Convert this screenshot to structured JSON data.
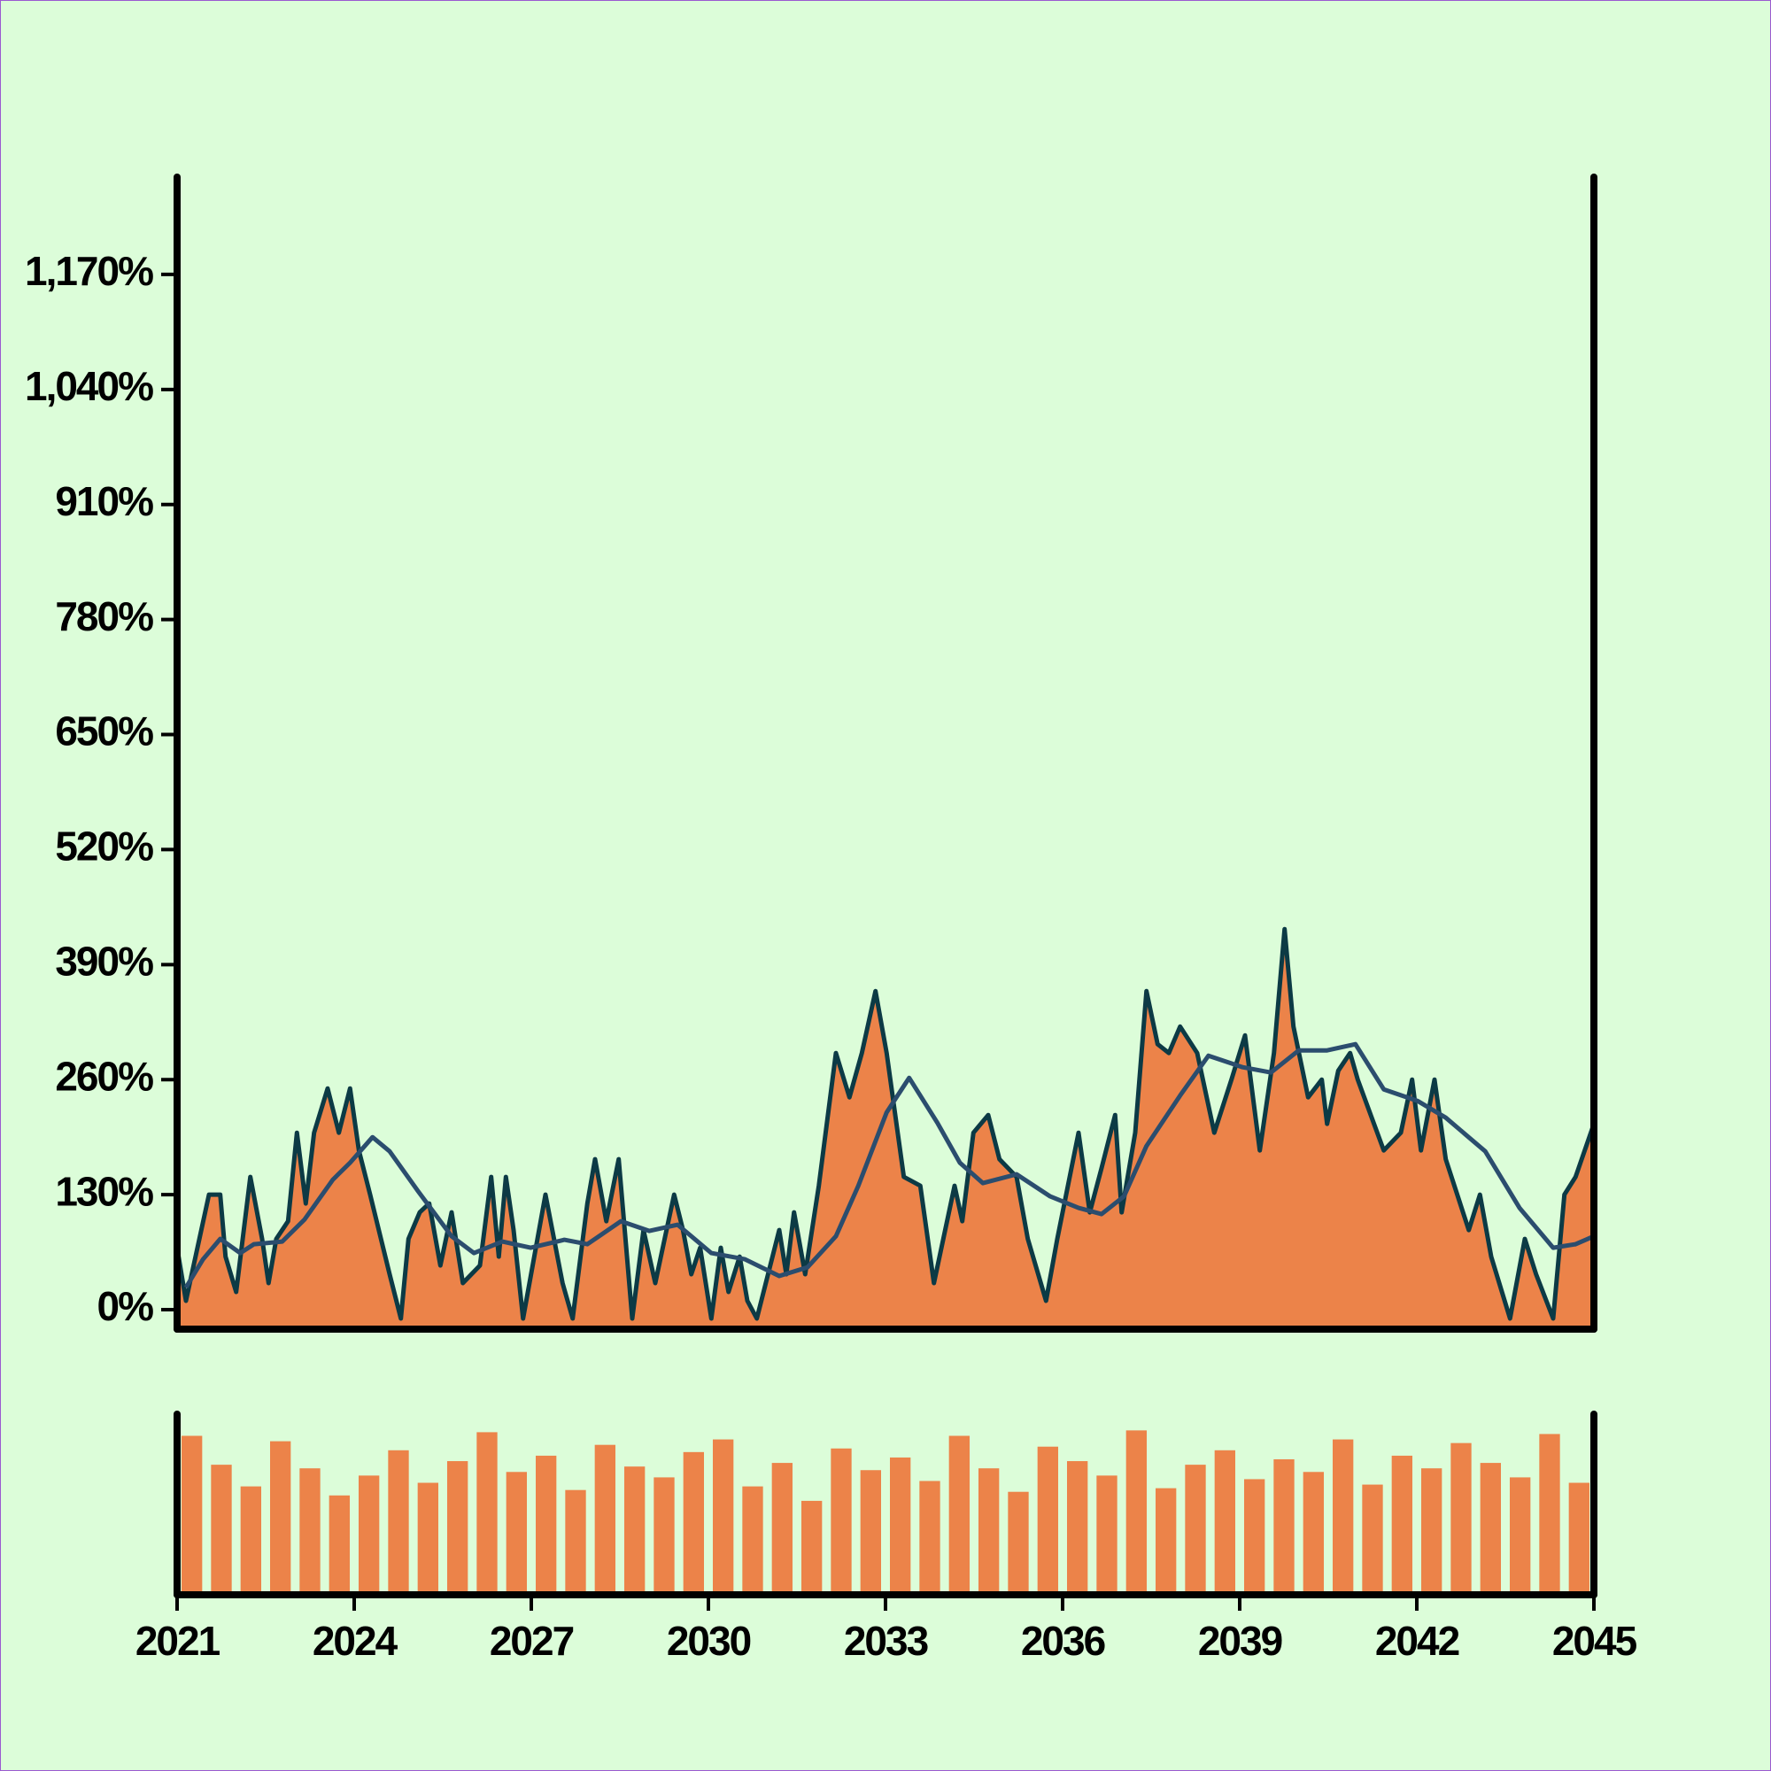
{
  "chart_data": [
    {
      "type": "area",
      "xlim": [
        2021,
        2045
      ],
      "ylim": [
        -22,
        1280
      ],
      "yticks": [
        {
          "value": 0,
          "label": "0%"
        },
        {
          "value": 130,
          "label": "130%"
        },
        {
          "value": 260,
          "label": "260%"
        },
        {
          "value": 390,
          "label": "390%"
        },
        {
          "value": 520,
          "label": "520%"
        },
        {
          "value": 650,
          "label": "650%"
        },
        {
          "value": 780,
          "label": "780%"
        },
        {
          "value": 910,
          "label": "910%"
        },
        {
          "value": 1040,
          "label": "1,040%"
        },
        {
          "value": 1170,
          "label": "1,170%"
        }
      ],
      "series": [
        {
          "color": "#0c3a45",
          "fill": "#ec8349",
          "x": [
            2021.0,
            2021.15,
            2021.54,
            2021.73,
            2021.82,
            2022.0,
            2022.24,
            2022.44,
            2022.55,
            2022.68,
            2022.88,
            2023.03,
            2023.18,
            2023.32,
            2023.55,
            2023.74,
            2023.93,
            2024.08,
            2024.27,
            2024.6,
            2024.79,
            2024.92,
            2025.11,
            2025.27,
            2025.46,
            2025.65,
            2025.84,
            2026.13,
            2026.32,
            2026.45,
            2026.57,
            2026.7,
            2026.86,
            2027.24,
            2027.53,
            2027.7,
            2027.95,
            2028.08,
            2028.27,
            2028.48,
            2028.71,
            2028.9,
            2029.1,
            2029.29,
            2029.42,
            2029.57,
            2029.71,
            2029.86,
            2030.05,
            2030.21,
            2030.34,
            2030.53,
            2030.66,
            2030.82,
            2031.2,
            2031.32,
            2031.45,
            2031.64,
            2031.87,
            2032.16,
            2032.39,
            2032.6,
            2032.83,
            2033.02,
            2033.31,
            2033.59,
            2033.82,
            2034.17,
            2034.3,
            2034.49,
            2034.74,
            2034.93,
            2035.22,
            2035.41,
            2035.72,
            2035.91,
            2036.27,
            2036.46,
            2036.66,
            2036.89,
            2037.0,
            2037.23,
            2037.42,
            2037.61,
            2037.8,
            2037.99,
            2038.28,
            2038.57,
            2038.86,
            2039.09,
            2039.34,
            2039.58,
            2039.76,
            2039.91,
            2040.16,
            2040.39,
            2040.48,
            2040.67,
            2040.87,
            2041.0,
            2041.44,
            2041.73,
            2041.92,
            2042.07,
            2042.3,
            2042.49,
            2042.88,
            2043.07,
            2043.26,
            2043.58,
            2043.83,
            2044.02,
            2044.31,
            2044.5,
            2044.69,
            2045.0
          ],
          "values": [
            70,
            10,
            130,
            130,
            60,
            20,
            150,
            80,
            30,
            80,
            100,
            200,
            120,
            200,
            250,
            200,
            250,
            180,
            130,
            40,
            -10,
            80,
            110,
            120,
            50,
            110,
            30,
            50,
            150,
            60,
            150,
            90,
            -10,
            130,
            30,
            -10,
            120,
            170,
            100,
            170,
            -10,
            90,
            30,
            90,
            130,
            90,
            40,
            70,
            -10,
            70,
            20,
            60,
            10,
            -10,
            90,
            40,
            110,
            40,
            140,
            290,
            240,
            290,
            360,
            290,
            150,
            140,
            30,
            140,
            100,
            200,
            220,
            170,
            150,
            80,
            10,
            80,
            200,
            110,
            160,
            220,
            110,
            200,
            360,
            300,
            290,
            320,
            290,
            200,
            260,
            310,
            180,
            290,
            430,
            320,
            240,
            260,
            210,
            270,
            290,
            260,
            180,
            200,
            260,
            180,
            260,
            170,
            90,
            130,
            60,
            -10,
            80,
            40,
            -10,
            130,
            150,
            210
          ]
        },
        {
          "color": "#2b4d6e",
          "x": [
            2021.15,
            2021.44,
            2021.73,
            2022.07,
            2022.3,
            2022.78,
            2023.16,
            2023.64,
            2023.93,
            2024.31,
            2024.6,
            2025.08,
            2025.65,
            2026.03,
            2026.51,
            2026.99,
            2027.56,
            2027.95,
            2028.52,
            2029.0,
            2029.48,
            2030.05,
            2030.62,
            2031.2,
            2031.68,
            2032.16,
            2032.54,
            2033.02,
            2033.4,
            2033.88,
            2034.26,
            2034.65,
            2035.22,
            2035.79,
            2036.27,
            2036.66,
            2037.04,
            2037.42,
            2037.99,
            2038.47,
            2039.05,
            2039.53,
            2040.0,
            2040.48,
            2040.96,
            2041.44,
            2042.01,
            2042.49,
            2043.16,
            2043.74,
            2044.31,
            2044.69,
            2045.0
          ],
          "values": [
            25,
            57,
            80,
            64,
            74,
            77,
            102,
            147,
            166,
            195,
            179,
            134,
            83,
            64,
            77,
            70,
            79,
            74,
            100,
            89,
            96,
            64,
            57,
            38,
            48,
            83,
            140,
            223,
            262,
            211,
            166,
            143,
            153,
            128,
            115,
            108,
            128,
            185,
            242,
            287,
            274,
            268,
            293,
            293,
            300,
            249,
            236,
            217,
            179,
            115,
            70,
            74,
            83
          ]
        }
      ]
    },
    {
      "type": "bar",
      "color": "#ec8349",
      "xlim": [
        2021,
        2045
      ],
      "xticks": [
        2021,
        2024,
        2027,
        2030,
        2033,
        2036,
        2039,
        2042,
        2045
      ],
      "ylim": [
        0,
        100
      ],
      "x": [
        2021.25,
        2021.75,
        2022.25,
        2022.75,
        2023.25,
        2023.75,
        2024.25,
        2024.75,
        2025.25,
        2025.75,
        2026.25,
        2026.75,
        2027.25,
        2027.75,
        2028.25,
        2028.75,
        2029.25,
        2029.75,
        2030.25,
        2030.75,
        2031.25,
        2031.75,
        2032.25,
        2032.75,
        2033.25,
        2033.75,
        2034.25,
        2034.75,
        2035.25,
        2035.75,
        2036.25,
        2036.75,
        2037.25,
        2037.75,
        2038.25,
        2038.75,
        2039.25,
        2039.75,
        2040.25,
        2040.75,
        2041.25,
        2041.75,
        2042.25,
        2042.75,
        2043.25,
        2043.75,
        2044.25,
        2044.75
      ],
      "values": [
        88,
        72,
        60,
        85,
        70,
        55,
        66,
        80,
        62,
        74,
        90,
        68,
        77,
        58,
        83,
        71,
        65,
        79,
        86,
        60,
        73,
        52,
        81,
        69,
        76,
        63,
        88,
        70,
        57,
        82,
        74,
        66,
        91,
        59,
        72,
        80,
        64,
        75,
        68,
        86,
        61,
        77,
        70,
        84,
        73,
        65,
        89,
        62
      ]
    }
  ]
}
